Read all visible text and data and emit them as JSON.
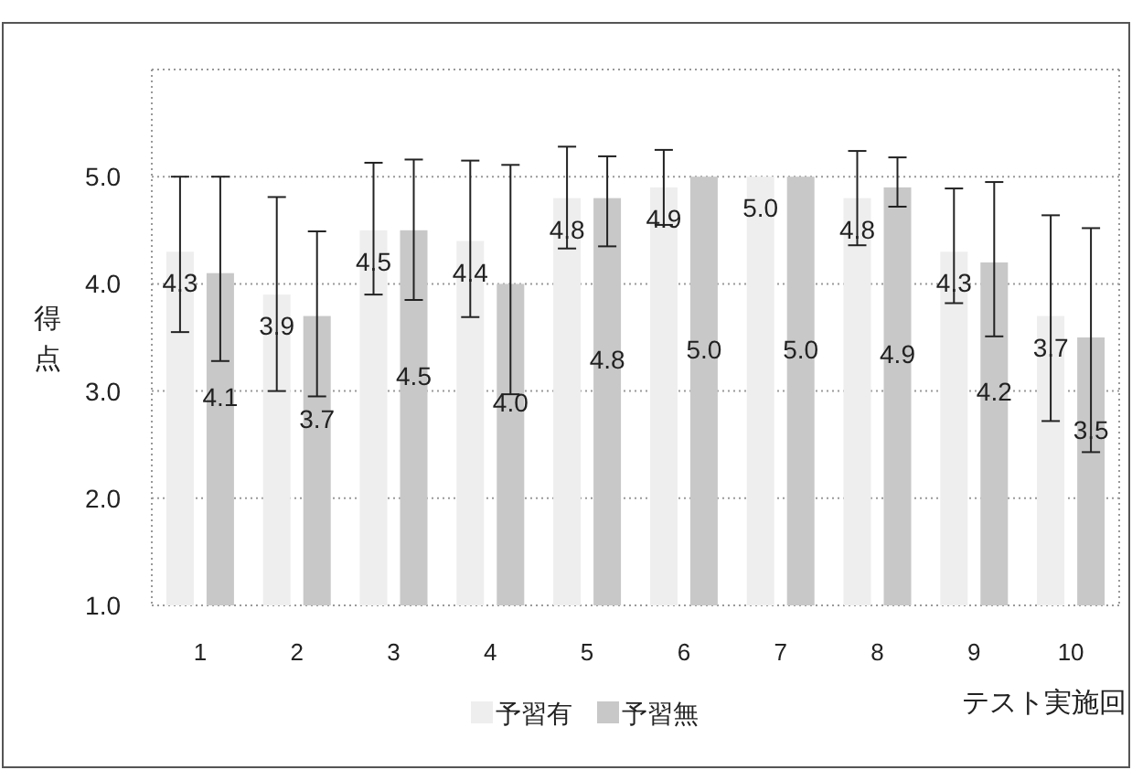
{
  "chart_data": {
    "type": "bar",
    "ylabel": "得点",
    "xlabel": "テスト実施回",
    "categories": [
      "1",
      "2",
      "3",
      "4",
      "5",
      "6",
      "7",
      "8",
      "9",
      "10"
    ],
    "series": [
      {
        "name": "予習有",
        "color": "#eeeeee",
        "values": [
          4.3,
          3.9,
          4.5,
          4.4,
          4.8,
          4.9,
          5.0,
          4.8,
          4.3,
          3.7
        ],
        "value_labels": [
          "4.3",
          "3.9",
          "4.5",
          "4.4",
          "4.8",
          "4.9",
          "5.0",
          "4.8",
          "4.3",
          "3.7"
        ],
        "errors": [
          [
            3.55,
            5.0
          ],
          [
            3.0,
            4.81
          ],
          [
            3.9,
            5.13
          ],
          [
            3.69,
            5.15
          ],
          [
            4.33,
            5.28
          ],
          [
            4.55,
            5.25
          ],
          null,
          [
            4.36,
            5.24
          ],
          [
            3.82,
            4.89
          ],
          [
            2.72,
            4.64
          ]
        ]
      },
      {
        "name": "予習無",
        "color": "#c8c8c8",
        "values": [
          4.1,
          3.7,
          4.5,
          4.0,
          4.8,
          5.0,
          5.0,
          4.9,
          4.2,
          3.5
        ],
        "value_labels": [
          "4.1",
          "3.7",
          "4.5",
          "4.0",
          "4.8",
          "5.0",
          "5.0",
          "4.9",
          "4.2",
          "3.5"
        ],
        "errors": [
          [
            3.28,
            5.0
          ],
          [
            2.95,
            4.49
          ],
          [
            3.85,
            5.16
          ],
          [
            2.97,
            5.11
          ],
          [
            4.35,
            5.19
          ],
          null,
          null,
          [
            4.72,
            5.18
          ],
          [
            3.51,
            4.95
          ],
          [
            2.43,
            4.52
          ]
        ]
      }
    ],
    "ylim": [
      1.0,
      6.0
    ],
    "yticks": [
      {
        "value": 1,
        "label": "1.0"
      },
      {
        "value": 2,
        "label": "2.0"
      },
      {
        "value": 3,
        "label": "3.0"
      },
      {
        "value": 4,
        "label": "4.0"
      },
      {
        "value": 5,
        "label": "5.0"
      },
      {
        "value": 6,
        "label": null
      }
    ],
    "grid": "y",
    "legend": "bottom"
  }
}
